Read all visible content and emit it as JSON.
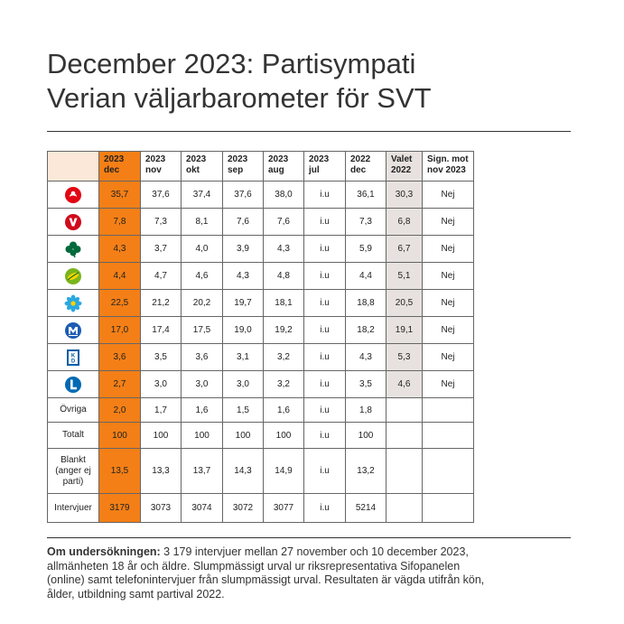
{
  "title": {
    "line1": "December 2023: Partisympati",
    "line2": "Verian väljarbarometer för SVT"
  },
  "columns": [
    {
      "l1": "2023",
      "l2": "dec"
    },
    {
      "l1": "2023",
      "l2": "nov"
    },
    {
      "l1": "2023",
      "l2": "okt"
    },
    {
      "l1": "2023",
      "l2": "sep"
    },
    {
      "l1": "2023",
      "l2": "aug"
    },
    {
      "l1": "2023",
      "l2": "jul"
    },
    {
      "l1": "2022",
      "l2": "dec"
    },
    {
      "l1": "Valet",
      "l2": "2022"
    },
    {
      "l1": "Sign. mot",
      "l2": "nov 2023"
    }
  ],
  "party_rows": [
    {
      "logo": "social-democrats-rose-logo",
      "values": [
        "35,7",
        "37,6",
        "37,4",
        "37,6",
        "38,0",
        "i.u",
        "36,1",
        "30,3",
        "Nej"
      ]
    },
    {
      "logo": "left-party-v-logo",
      "values": [
        "7,8",
        "7,3",
        "8,1",
        "7,6",
        "7,6",
        "i.u",
        "7,3",
        "6,8",
        "Nej"
      ]
    },
    {
      "logo": "centre-party-clover-logo",
      "values": [
        "4,3",
        "3,7",
        "4,0",
        "3,9",
        "4,3",
        "i.u",
        "5,9",
        "6,7",
        "Nej"
      ]
    },
    {
      "logo": "green-party-leaf-logo",
      "values": [
        "4,4",
        "4,7",
        "4,6",
        "4,3",
        "4,8",
        "i.u",
        "4,4",
        "5,1",
        "Nej"
      ]
    },
    {
      "logo": "sweden-democrats-flower-logo",
      "values": [
        "22,5",
        "21,2",
        "20,2",
        "19,7",
        "18,1",
        "i.u",
        "18,8",
        "20,5",
        "Nej"
      ]
    },
    {
      "logo": "moderates-m-logo",
      "values": [
        "17,0",
        "17,4",
        "17,5",
        "19,0",
        "19,2",
        "i.u",
        "18,2",
        "19,1",
        "Nej"
      ]
    },
    {
      "logo": "christian-democrats-kd-logo",
      "values": [
        "3,6",
        "3,5",
        "3,6",
        "3,1",
        "3,2",
        "i.u",
        "4,3",
        "5,3",
        "Nej"
      ]
    },
    {
      "logo": "liberals-l-logo",
      "values": [
        "2,7",
        "3,0",
        "3,0",
        "3,0",
        "3,2",
        "i.u",
        "3,5",
        "4,6",
        "Nej"
      ]
    }
  ],
  "summary_rows": [
    {
      "label": "Övriga",
      "values": [
        "2,0",
        "1,7",
        "1,6",
        "1,5",
        "1,6",
        "i.u",
        "1,8",
        "",
        ""
      ]
    },
    {
      "label": "Totalt",
      "values": [
        "100",
        "100",
        "100",
        "100",
        "100",
        "i.u",
        "100",
        "",
        ""
      ]
    },
    {
      "label": "Blankt (anger ej parti)",
      "values": [
        "13,5",
        "13,3",
        "13,7",
        "14,3",
        "14,9",
        "i.u",
        "13,2",
        "",
        ""
      ]
    },
    {
      "label": "Intervjuer",
      "values": [
        "3179",
        "3073",
        "3074",
        "3072",
        "3077",
        "i.u",
        "5214",
        "",
        ""
      ]
    }
  ],
  "footnote": {
    "heading": "Om undersökningen:",
    "text": " 3 179 intervjuer mellan 27 november och 10 december 2023, allmänheten 18 år och äldre. Slumpmässigt urval ur riksrepresentativa Sifopanelen (online) samt telefonintervjuer från slumpmässigt urval. Resultaten är vägda utifrån kön, ålder, utbildning samt partival 2022."
  },
  "colors": {
    "current_month": "#f47f16",
    "election_column": "#e7e2df",
    "corner": "#fbe8d8"
  }
}
